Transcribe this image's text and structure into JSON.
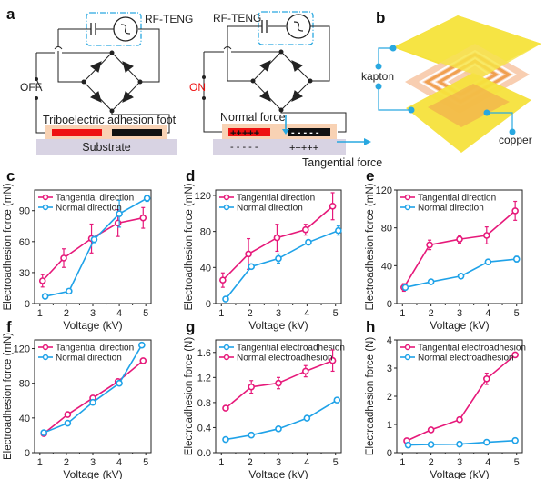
{
  "panel_labels": {
    "a": "a",
    "b": "b",
    "c": "c",
    "d": "d",
    "e": "e",
    "f": "f",
    "g": "g",
    "h": "h"
  },
  "schematic_a": {
    "off_state": {
      "switch_label": "OFF",
      "source_label": "RF-TENG",
      "foot_label": "Triboelectric adhesion foot",
      "substrate_label": "Substrate"
    },
    "on_state": {
      "switch_label": "ON",
      "source_label": "RF-TENG",
      "normal_force_label": "Normal force",
      "tangential_force_label": "Tangential force",
      "electrode_left_charges": "+++++",
      "electrode_right_charges": "- - - - -",
      "substrate_left_charges": "- - - - -",
      "substrate_right_charges": "+++++"
    },
    "colors": {
      "teng_box": "#29a8e0",
      "arrow": "#29a8e0",
      "foot_bg": "#f8d2b4",
      "substrate": "#d8d3e3",
      "left_electrode": "#ee1111",
      "right_electrode": "#111111",
      "on_text": "#ee1111"
    }
  },
  "schematic_b": {
    "labels": {
      "kapton": "kapton",
      "copper": "copper"
    },
    "colors": {
      "kapton": "#f5e23c",
      "copper": "#f0a050",
      "leader": "#29a8e0"
    }
  },
  "series_colors": {
    "pink": "#e6197a",
    "blue": "#1fa2e8"
  },
  "chart_data": [
    {
      "panel": "c",
      "type": "line",
      "xlabel": "Voltage (kV)",
      "ylabel": "Electroadhesion force (mN)",
      "xlim": [
        0.8,
        5.2
      ],
      "ylim": [
        0,
        110
      ],
      "xticks": [
        1,
        2,
        3,
        4,
        5
      ],
      "yticks": [
        0,
        30,
        60,
        90
      ],
      "legend_position": "top-left",
      "series": [
        {
          "name": "Tangential direction",
          "color": "pink",
          "x": [
            1.1,
            1.9,
            2.95,
            3.95,
            4.9
          ],
          "y": [
            22,
            44,
            63,
            78,
            83
          ],
          "err": [
            6,
            9,
            14,
            13,
            10
          ]
        },
        {
          "name": "Normal direction",
          "color": "blue",
          "x": [
            1.2,
            2.1,
            3.05,
            4.0,
            5.05
          ],
          "y": [
            7,
            12,
            62,
            87,
            102
          ],
          "err": [
            1,
            1.5,
            3,
            13,
            3
          ]
        }
      ]
    },
    {
      "panel": "d",
      "type": "line",
      "xlabel": "Voltage (kV)",
      "ylabel": "Electroadhesion force (mN)",
      "xlim": [
        0.8,
        5.2
      ],
      "ylim": [
        0,
        126
      ],
      "xticks": [
        1,
        2,
        3,
        4,
        5
      ],
      "yticks": [
        0,
        40,
        80,
        120
      ],
      "legend_position": "top-left",
      "series": [
        {
          "name": "Tangential direction",
          "color": "pink",
          "x": [
            1.05,
            1.95,
            2.95,
            3.95,
            4.9
          ],
          "y": [
            26,
            55,
            73,
            82,
            108
          ],
          "err": [
            8,
            17,
            15,
            6,
            15
          ]
        },
        {
          "name": "Normal direction",
          "color": "blue",
          "x": [
            1.15,
            2.05,
            3.0,
            4.05,
            5.1
          ],
          "y": [
            5,
            41,
            50,
            68,
            81
          ],
          "err": [
            1,
            2,
            5,
            2,
            5
          ]
        }
      ]
    },
    {
      "panel": "e",
      "type": "line",
      "xlabel": "Voltage (kV)",
      "ylabel": "Electroadhesion force (mN)",
      "xlim": [
        0.8,
        5.2
      ],
      "ylim": [
        0,
        120
      ],
      "xticks": [
        1,
        2,
        3,
        4,
        5
      ],
      "yticks": [
        0,
        40,
        80,
        120
      ],
      "legend_position": "top-left",
      "series": [
        {
          "name": "Tangential direction",
          "color": "pink",
          "x": [
            1.05,
            1.95,
            3.0,
            3.95,
            4.95
          ],
          "y": [
            17,
            62,
            68,
            72,
            98
          ],
          "err": [
            4,
            5,
            4,
            9,
            10
          ]
        },
        {
          "name": "Normal direction",
          "color": "blue",
          "x": [
            1.1,
            2.0,
            3.05,
            4.0,
            5.0
          ],
          "y": [
            17,
            23,
            29,
            44,
            47
          ],
          "err": [
            2,
            2,
            2,
            1.5,
            3
          ]
        }
      ]
    },
    {
      "panel": "f",
      "type": "line",
      "xlabel": "Voltage (kV)",
      "ylabel": "Electroadhesion force (mN)",
      "xlim": [
        0.8,
        5.2
      ],
      "ylim": [
        0,
        130
      ],
      "xticks": [
        1,
        2,
        3,
        4,
        5
      ],
      "yticks": [
        0,
        40,
        80,
        120
      ],
      "legend_position": "top-left",
      "series": [
        {
          "name": "Tangential direction",
          "color": "pink",
          "x": [
            1.15,
            2.05,
            3.0,
            3.95,
            4.9
          ],
          "y": [
            22,
            44,
            63,
            82,
            106
          ],
          "err": [
            1.5,
            2,
            1.5,
            1.5,
            1.5
          ]
        },
        {
          "name": "Normal direction",
          "color": "blue",
          "x": [
            1.15,
            2.05,
            3.0,
            4.0,
            4.85
          ],
          "y": [
            23,
            34,
            58,
            80,
            124
          ],
          "err": [
            1.5,
            1.5,
            1.5,
            1.5,
            2
          ]
        }
      ]
    },
    {
      "panel": "g",
      "type": "line",
      "xlabel": "Voltage (kV)",
      "ylabel": "Electroadhesion force (N)",
      "xlim": [
        0.8,
        5.2
      ],
      "ylim": [
        0,
        1.8
      ],
      "xticks": [
        1,
        2,
        3,
        4,
        5
      ],
      "yticks": [
        0.0,
        0.4,
        0.8,
        1.2,
        1.6
      ],
      "ytick_labels": [
        "0.0",
        "0.4",
        "0.8",
        "1.2",
        "1.6"
      ],
      "legend_position": "top-left",
      "series": [
        {
          "name": "Tangential electroadhesion",
          "color": "blue",
          "x": [
            1.15,
            2.05,
            3.0,
            4.0,
            5.05
          ],
          "y": [
            0.21,
            0.28,
            0.38,
            0.55,
            0.84
          ],
          "err": [
            0.01,
            0.01,
            0.01,
            0.01,
            0.02
          ]
        },
        {
          "name": "Normal electroadhesion",
          "color": "pink",
          "x": [
            1.15,
            2.05,
            3.0,
            3.95,
            4.9
          ],
          "y": [
            0.71,
            1.05,
            1.11,
            1.3,
            1.47
          ],
          "err": [
            0.03,
            0.1,
            0.09,
            0.09,
            0.17
          ]
        }
      ]
    },
    {
      "panel": "h",
      "type": "line",
      "xlabel": "Voltage (kV)",
      "ylabel": "Electroadhesion force (N)",
      "xlim": [
        0.8,
        5.2
      ],
      "ylim": [
        0,
        4
      ],
      "xticks": [
        1,
        2,
        3,
        4,
        5
      ],
      "yticks": [
        0,
        1,
        2,
        3,
        4
      ],
      "legend_position": "top-left",
      "series": [
        {
          "name": "Tangential electroadhesion",
          "color": "pink",
          "x": [
            1.15,
            2.0,
            3.0,
            3.95,
            4.95
          ],
          "y": [
            0.42,
            0.81,
            1.17,
            2.62,
            3.47
          ],
          "err": [
            0.03,
            0.03,
            0.03,
            0.2,
            0.05
          ]
        },
        {
          "name": "Normal electroadhesion",
          "color": "blue",
          "x": [
            1.2,
            2.0,
            3.0,
            3.95,
            4.95
          ],
          "y": [
            0.27,
            0.29,
            0.3,
            0.37,
            0.43
          ],
          "err": [
            0.02,
            0.02,
            0.02,
            0.02,
            0.02
          ]
        }
      ]
    }
  ]
}
